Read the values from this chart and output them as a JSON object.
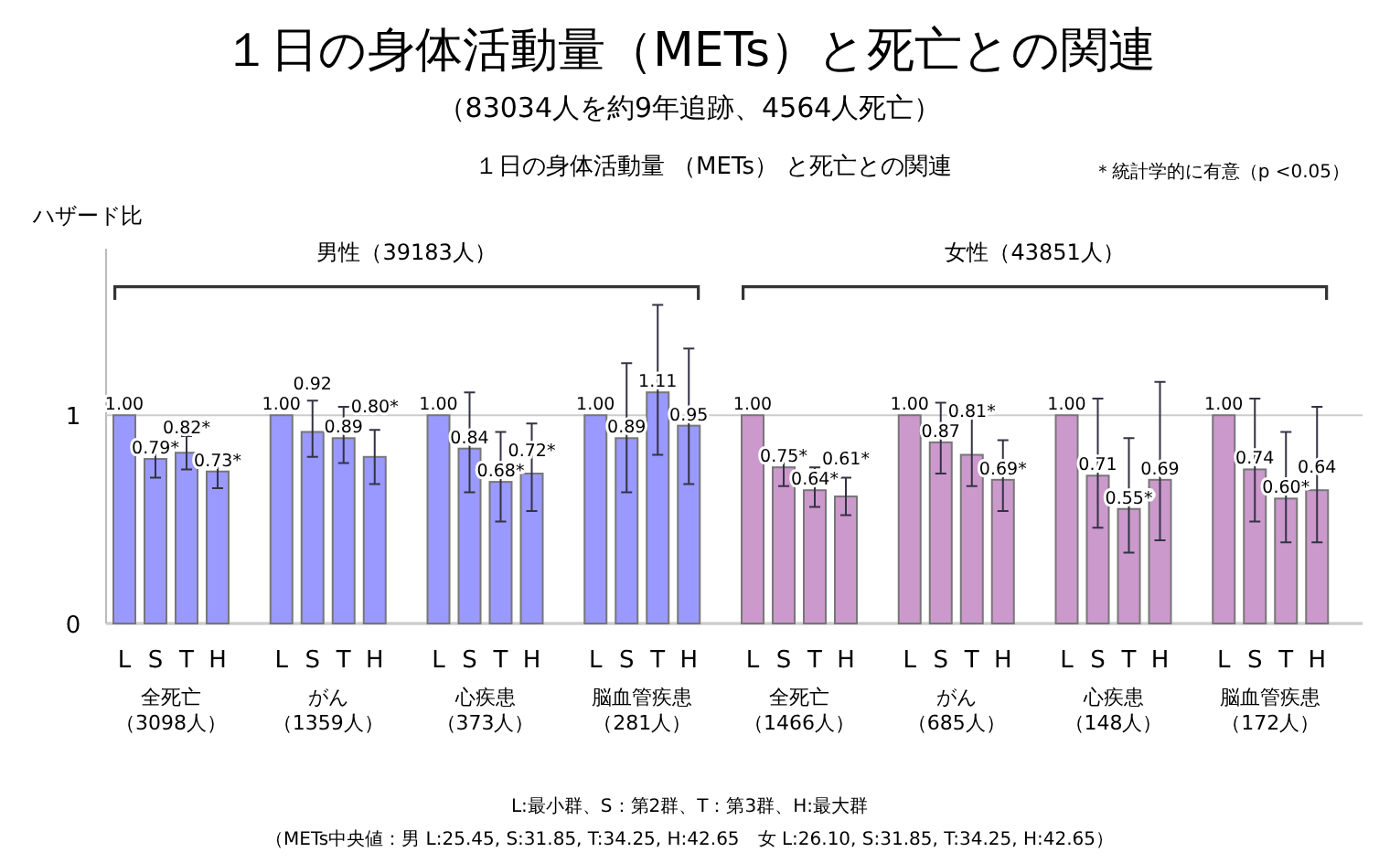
{
  "chart_data": {
    "type": "bar",
    "title": "１日の身体活動量（METs）と死亡との関連",
    "subtitle": "（83034人を約9年追跡、4564人死亡）",
    "ylabel": "ハザード比",
    "categories": [
      "L",
      "S",
      "T",
      "H",
      "L",
      "S",
      "T",
      "H",
      "L",
      "S",
      "T",
      "H",
      "L",
      "S",
      "T",
      "H",
      "L",
      "S",
      "T",
      "H",
      "L",
      "S",
      "T",
      "H",
      "L",
      "S",
      "T",
      "H",
      "L",
      "S",
      "T",
      "H"
    ],
    "values": [
      1.0,
      0.79,
      0.82,
      0.73,
      1.0,
      0.92,
      0.89,
      0.8,
      1.0,
      0.84,
      0.68,
      0.72,
      1.0,
      0.89,
      1.11,
      0.95,
      1.0,
      0.75,
      0.64,
      0.61,
      1.0,
      0.87,
      0.81,
      0.69,
      1.0,
      0.71,
      0.55,
      0.69,
      1.0,
      0.74,
      0.6,
      0.64
    ],
    "colors": [
      "#9999ff",
      "#9999ff",
      "#9999ff",
      "#9999ff",
      "#9999ff",
      "#9999ff",
      "#9999ff",
      "#9999ff",
      "#9999ff",
      "#9999ff",
      "#9999ff",
      "#9999ff",
      "#9999ff",
      "#9999ff",
      "#9999ff",
      "#9999ff",
      "#cc99cc",
      "#cc99cc",
      "#cc99cc",
      "#cc99cc",
      "#cc99cc",
      "#cc99cc",
      "#cc99cc",
      "#cc99cc",
      "#cc99cc",
      "#cc99cc",
      "#cc99cc",
      "#cc99cc",
      "#cc99cc",
      "#cc99cc",
      "#cc99cc",
      "#cc99cc"
    ],
    "errors": [
      null,
      [
        0.7,
        0.87
      ],
      [
        0.74,
        0.9
      ],
      [
        0.65,
        0.8
      ],
      null,
      [
        0.8,
        1.07
      ],
      [
        0.77,
        1.04
      ],
      [
        0.67,
        0.93
      ],
      null,
      [
        0.63,
        1.11
      ],
      [
        0.49,
        0.92
      ],
      [
        0.54,
        0.96
      ],
      null,
      [
        0.63,
        1.25
      ],
      [
        0.81,
        1.53
      ],
      [
        0.67,
        1.32
      ],
      null,
      [
        0.66,
        0.83
      ],
      [
        0.56,
        0.75
      ],
      [
        0.52,
        0.7
      ],
      null,
      [
        0.72,
        1.06
      ],
      [
        0.66,
        1.0
      ],
      [
        0.54,
        0.88
      ],
      null,
      [
        0.46,
        1.08
      ],
      [
        0.34,
        0.89
      ],
      [
        0.4,
        1.16
      ],
      null,
      [
        0.49,
        1.08
      ],
      [
        0.39,
        0.92
      ],
      [
        0.39,
        1.04
      ]
    ],
    "value_labels": [
      "1.00",
      "0.79*",
      "0.82*",
      "0.73*",
      "1.00",
      "0.92",
      "0.89",
      "0.80*",
      "1.00",
      "0.84",
      "0.68*",
      "0.72*",
      "1.00",
      "0.89",
      "1.11",
      "0.95",
      "1.00",
      "0.75*",
      "0.64*",
      "0.61*",
      "1.00",
      "0.87",
      "0.81*",
      "0.69*",
      "1.00",
      "0.71",
      "0.55*",
      "0.69",
      "1.00",
      "0.74",
      "0.60*",
      "0.64"
    ],
    "ylim": [
      0,
      1.8
    ],
    "yticks": [
      0,
      1
    ],
    "grid": "y",
    "annotations": [
      "１日の身体活動量 （METs） と死亡との関連",
      "＊統計学的に有意（p <0.05）",
      "男性（39183人）",
      "女性（43851人）",
      "全死亡",
      "（3098人）",
      "がん",
      "（1359人）",
      "心疾患",
      "（373人）",
      "脳血管疾患",
      "（281人）",
      "全死亡",
      "（1466人）",
      "がん",
      "（685人）",
      "心疾患",
      "（148人）",
      "脳血管疾患",
      "（172人）",
      "L:最小群、S：第2群、T：第3群、H:最大群",
      "（METs中央値：男 L:25.45, S:31.85, T:34.25, H:42.65　女 L:26.10, S:31.85, T:34.25, H:42.65）"
    ]
  }
}
